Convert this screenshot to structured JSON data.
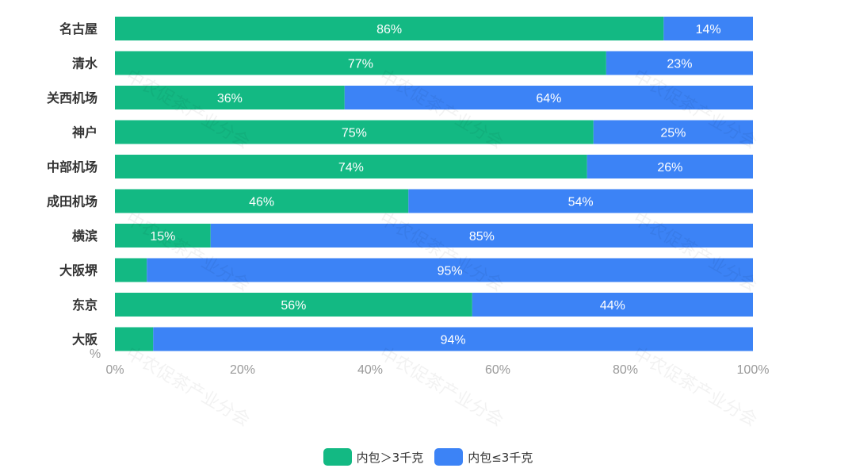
{
  "chart_data": {
    "type": "bar",
    "orientation": "horizontal",
    "stacked": true,
    "categories": [
      "名古屋",
      "清水",
      "关西机场",
      "神户",
      "中部机场",
      "成田机场",
      "横滨",
      "大阪堺",
      "东京",
      "大阪"
    ],
    "series": [
      {
        "name": "内包＞3千克",
        "color": "#13b983",
        "values": [
          86,
          77,
          36,
          75,
          74,
          46,
          15,
          5,
          56,
          6
        ],
        "labels": [
          "86%",
          "77%",
          "36%",
          "75%",
          "74%",
          "46%",
          "15%",
          "",
          "56%",
          ""
        ]
      },
      {
        "name": "内包≤3千克",
        "color": "#3c83f6",
        "values": [
          14,
          23,
          64,
          25,
          26,
          54,
          85,
          95,
          44,
          94
        ],
        "labels": [
          "14%",
          "23%",
          "64%",
          "25%",
          "26%",
          "54%",
          "85%",
          "95%",
          "44%",
          "94%"
        ]
      }
    ],
    "xlabel": "%",
    "xlim": [
      0,
      100
    ],
    "xticks": [
      "0%",
      "20%",
      "40%",
      "60%",
      "80%",
      "100%"
    ],
    "legend_position": "bottom-center",
    "grid": false
  },
  "watermark_text": "中农促茶产业分会"
}
